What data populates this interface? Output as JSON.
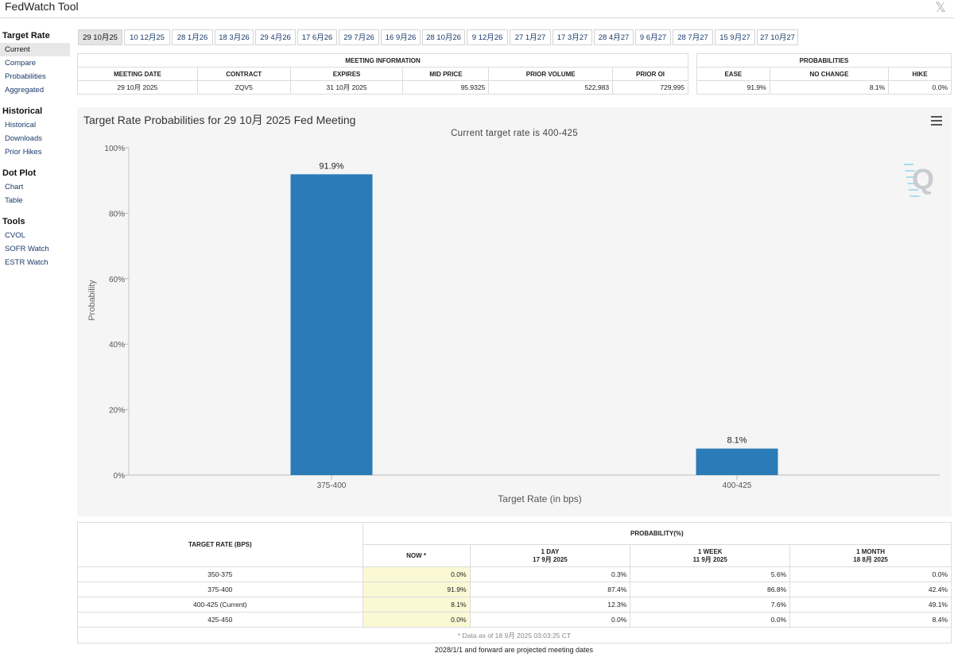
{
  "app": {
    "title": "FedWatch Tool",
    "close_glyph": "𝕏"
  },
  "sidebar": {
    "groups": [
      {
        "label": "Target Rate",
        "items": [
          "Current",
          "Compare",
          "Probabilities",
          "Aggregated"
        ]
      },
      {
        "label": "Historical",
        "items": [
          "Historical",
          "Downloads",
          "Prior Hikes"
        ]
      },
      {
        "label": "Dot Plot",
        "items": [
          "Chart",
          "Table"
        ]
      },
      {
        "label": "Tools",
        "items": [
          "CVOL",
          "SOFR Watch",
          "ESTR Watch"
        ]
      }
    ],
    "active_item": "Current"
  },
  "meeting_tabs": [
    "29 10月25",
    "10 12月25",
    "28 1月26",
    "18 3月26",
    "29 4月26",
    "17 6月26",
    "29 7月26",
    "16 9月26",
    "28 10月26",
    "9 12月26",
    "27 1月27",
    "17 3月27",
    "28 4月27",
    "9 6月27",
    "28 7月27",
    "15 9月27",
    "27 10月27"
  ],
  "meeting_info": {
    "title": "MEETING INFORMATION",
    "headers": [
      "MEETING DATE",
      "CONTRACT",
      "EXPIRES",
      "MID PRICE",
      "PRIOR VOLUME",
      "PRIOR OI"
    ],
    "values": [
      "29 10月 2025",
      "ZQV5",
      "31 10月 2025",
      "95.9325",
      "522,983",
      "729,995"
    ]
  },
  "probabilities": {
    "title": "PROBABILITIES",
    "headers": [
      "EASE",
      "NO CHANGE",
      "HIKE"
    ],
    "values": [
      "91.9%",
      "8.1%",
      "0.0%"
    ]
  },
  "chart": {
    "title": "Target Rate Probabilities for 29 10月 2025 Fed Meeting",
    "subtitle": "Current target rate is 400-425",
    "menu_icon": "hamburger-menu-icon",
    "watermark": "Q"
  },
  "chart_data": {
    "type": "bar",
    "title": "Target Rate Probabilities for 29 10月 2025 Fed Meeting",
    "subtitle": "Current target rate is 400-425",
    "categories": [
      "375-400",
      "400-425"
    ],
    "values": [
      91.9,
      8.1
    ],
    "data_labels": [
      "91.9%",
      "8.1%"
    ],
    "xlabel": "Target Rate (in bps)",
    "ylabel": "Probability",
    "ylim": [
      0,
      100
    ],
    "yticks": [
      "0%",
      "20%",
      "40%",
      "60%",
      "80%",
      "100%"
    ],
    "bar_color": "#2b7bb9",
    "grid": false
  },
  "prob_table": {
    "col_rate": "TARGET RATE (BPS)",
    "col_prob": "PROBABILITY(%)",
    "sub_headers": [
      {
        "line1": "NOW *",
        "line2": ""
      },
      {
        "line1": "1 DAY",
        "line2": "17 9月 2025"
      },
      {
        "line1": "1 WEEK",
        "line2": "11 9月 2025"
      },
      {
        "line1": "1 MONTH",
        "line2": "18 8月 2025"
      }
    ],
    "rows": [
      {
        "rate": "350-375",
        "now": "0.0%",
        "day": "0.3%",
        "week": "5.6%",
        "month": "0.0%"
      },
      {
        "rate": "375-400",
        "now": "91.9%",
        "day": "87.4%",
        "week": "86.8%",
        "month": "42.4%"
      },
      {
        "rate": "400-425 (Current)",
        "now": "8.1%",
        "day": "12.3%",
        "week": "7.6%",
        "month": "49.1%"
      },
      {
        "rate": "425-450",
        "now": "0.0%",
        "day": "0.0%",
        "week": "0.0%",
        "month": "8.4%"
      }
    ],
    "note": "* Data as of 18 9月 2025 03:03:25 CT"
  },
  "footer": "2028/1/1 and forward are projected meeting dates"
}
